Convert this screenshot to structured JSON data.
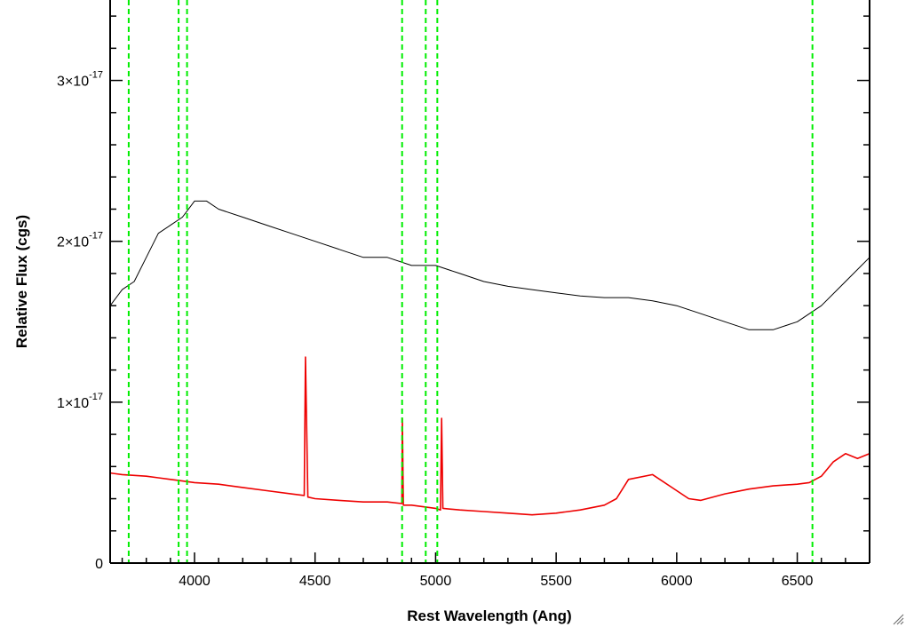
{
  "chart_data": {
    "type": "line",
    "title": "",
    "xlabel": "Rest Wavelength (Ang)",
    "ylabel": "Relative Flux (cgs)",
    "xlim": [
      3650,
      6800
    ],
    "ylim": [
      0,
      3.5e-17
    ],
    "x_ticks": [
      4000,
      4500,
      5000,
      5500,
      6000,
      6500
    ],
    "x_tick_labels": [
      "4000",
      "4500",
      "5000",
      "5500",
      "6000",
      "6500"
    ],
    "y_ticks": [
      0,
      1e-17,
      2e-17,
      3e-17
    ],
    "y_tick_labels": [
      {
        "base": "0",
        "exp": ""
      },
      {
        "base": "1×10",
        "exp": "-17"
      },
      {
        "base": "2×10",
        "exp": "-17"
      },
      {
        "base": "3×10",
        "exp": "-17"
      }
    ],
    "grid": false,
    "legend": "none",
    "series": [
      {
        "color": "#000000",
        "style": "solid",
        "x": [
          3650,
          3700,
          3750,
          3800,
          3850,
          3900,
          3950,
          4000,
          4050,
          4100,
          4200,
          4300,
          4400,
          4500,
          4600,
          4700,
          4800,
          4900,
          5000,
          5100,
          5200,
          5300,
          5400,
          5500,
          5600,
          5700,
          5800,
          5900,
          6000,
          6100,
          6200,
          6300,
          6400,
          6500,
          6600,
          6700,
          6800
        ],
        "values": [
          1.6e-17,
          1.7e-17,
          1.75e-17,
          1.9e-17,
          2.05e-17,
          2.1e-17,
          2.15e-17,
          2.25e-17,
          2.25e-17,
          2.2e-17,
          2.15e-17,
          2.1e-17,
          2.05e-17,
          2e-17,
          1.95e-17,
          1.9e-17,
          1.9e-17,
          1.85e-17,
          1.85e-17,
          1.8e-17,
          1.75e-17,
          1.72e-17,
          1.7e-17,
          1.68e-17,
          1.66e-17,
          1.65e-17,
          1.65e-17,
          1.63e-17,
          1.6e-17,
          1.55e-17,
          1.5e-17,
          1.45e-17,
          1.45e-17,
          1.5e-17,
          1.6e-17,
          1.75e-17,
          1.9e-17
        ]
      },
      {
        "color": "#ee0000",
        "style": "solid",
        "x": [
          3650,
          3700,
          3750,
          3800,
          3850,
          3900,
          3950,
          4000,
          4050,
          4100,
          4200,
          4300,
          4400,
          4455,
          4460,
          4470,
          4500,
          4600,
          4700,
          4800,
          4860,
          4862,
          4866,
          4900,
          5000,
          5020,
          5025,
          5030,
          5100,
          5200,
          5300,
          5400,
          5500,
          5600,
          5700,
          5750,
          5800,
          5900,
          6000,
          6050,
          6100,
          6200,
          6300,
          6400,
          6500,
          6550,
          6600,
          6650,
          6700,
          6750,
          6800
        ],
        "values": [
          5.6e-18,
          5.5e-18,
          5.45e-18,
          5.4e-18,
          5.3e-18,
          5.2e-18,
          5.1e-18,
          5e-18,
          4.95e-18,
          4.9e-18,
          4.7e-18,
          4.5e-18,
          4.3e-18,
          4.2e-18,
          1.28e-17,
          4.1e-18,
          4e-18,
          3.9e-18,
          3.8e-18,
          3.8e-18,
          3.7e-18,
          9e-18,
          3.6e-18,
          3.6e-18,
          3.4e-18,
          3.3e-18,
          9e-18,
          3.4e-18,
          3.3e-18,
          3.2e-18,
          3.1e-18,
          3e-18,
          3.1e-18,
          3.3e-18,
          3.6e-18,
          4e-18,
          5.2e-18,
          5.5e-18,
          4.5e-18,
          4e-18,
          3.9e-18,
          4.3e-18,
          4.6e-18,
          4.8e-18,
          4.9e-18,
          5e-18,
          5.4e-18,
          6.3e-18,
          6.8e-18,
          6.5e-18,
          6.8e-18
        ]
      }
    ],
    "reference_lines": [
      {
        "x": 3727,
        "color": "#00ee00",
        "style": "dashed"
      },
      {
        "x": 3934,
        "color": "#00ee00",
        "style": "dashed"
      },
      {
        "x": 3969,
        "color": "#00ee00",
        "style": "dashed"
      },
      {
        "x": 4861,
        "color": "#00ee00",
        "style": "dashed"
      },
      {
        "x": 4959,
        "color": "#00ee00",
        "style": "dashed"
      },
      {
        "x": 5007,
        "color": "#00ee00",
        "style": "dashed"
      },
      {
        "x": 6563,
        "color": "#00ee00",
        "style": "dashed"
      }
    ]
  },
  "ui": {
    "resize_grip_icon": "resize-grip-icon"
  }
}
